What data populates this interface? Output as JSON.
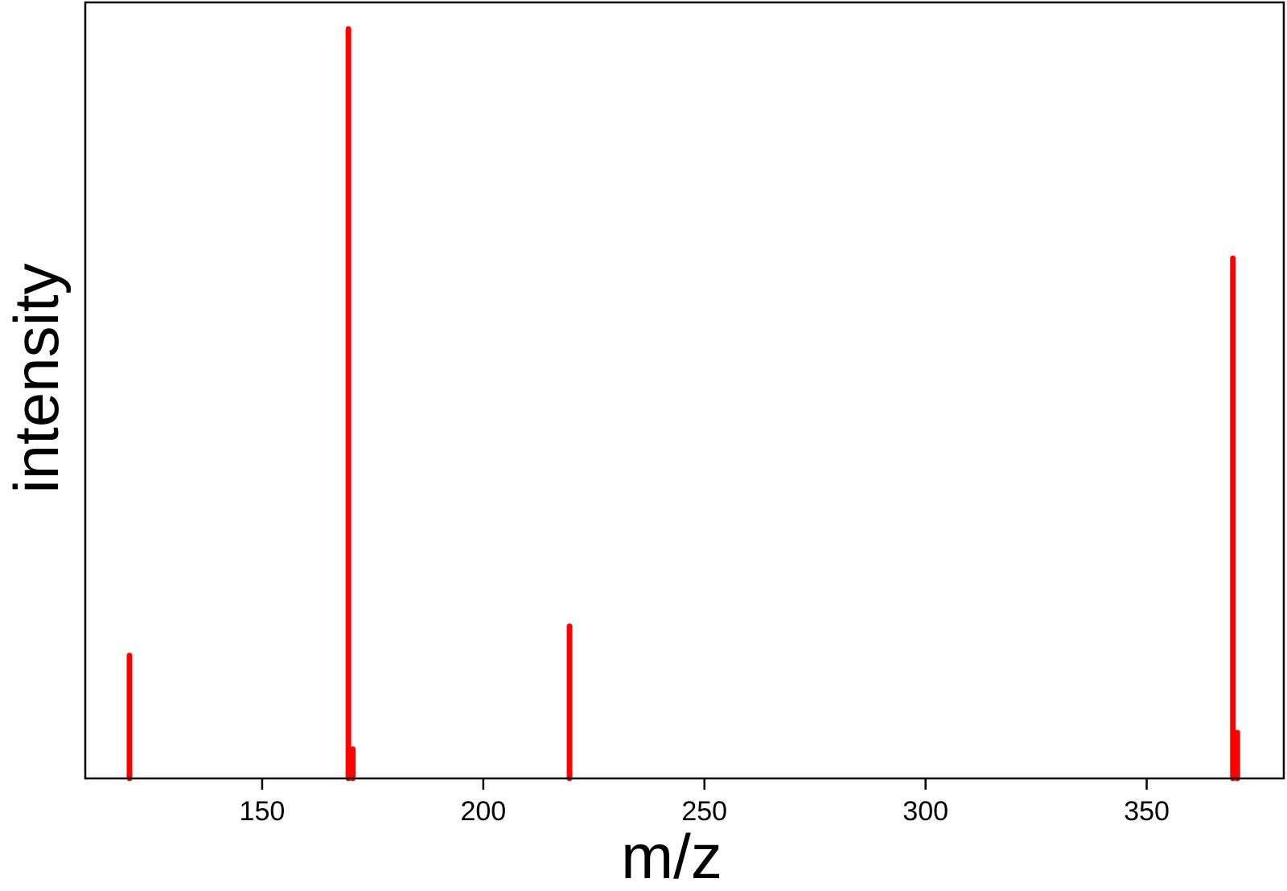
{
  "chart_data": {
    "type": "bar",
    "subtype": "stick-spectrum",
    "title": "",
    "xlabel": "m/z",
    "ylabel": "intensity",
    "xlim": [
      110,
      381
    ],
    "ylim": [
      0,
      100
    ],
    "x_ticks": [
      150,
      200,
      250,
      300,
      350
    ],
    "y_ticks_shown": false,
    "grid": false,
    "legend": "none",
    "series": [
      {
        "color": "#ff0000",
        "points": [
          {
            "x": 120,
            "y": 16.4
          },
          {
            "x": 169.5,
            "y": 100
          },
          {
            "x": 170.5,
            "y": 3.9
          },
          {
            "x": 219.5,
            "y": 20.3
          },
          {
            "x": 369.5,
            "y": 69.4
          },
          {
            "x": 370.5,
            "y": 6.1
          }
        ]
      }
    ]
  }
}
